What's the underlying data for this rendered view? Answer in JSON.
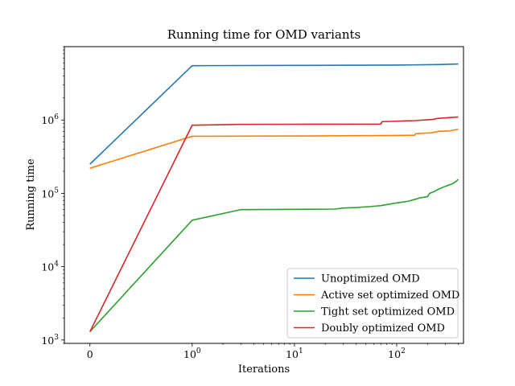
{
  "chart_data": {
    "type": "line",
    "title": "Running time for OMD variants",
    "xlabel": "Iterations",
    "ylabel": "Running time",
    "x_scale": "symlog",
    "y_scale": "log",
    "xlim": [
      -0.25,
      450
    ],
    "ylim": [
      900,
      10000000
    ],
    "x_ticks": [
      {
        "value": 0,
        "label": "0"
      },
      {
        "value": 1,
        "label": "10",
        "exp": "0"
      },
      {
        "value": 10,
        "label": "10",
        "exp": "1"
      },
      {
        "value": 100,
        "label": "10",
        "exp": "2"
      }
    ],
    "y_ticks": [
      {
        "value": 1000,
        "label": "10",
        "exp": "3"
      },
      {
        "value": 10000,
        "label": "10",
        "exp": "4"
      },
      {
        "value": 100000,
        "label": "10",
        "exp": "5"
      },
      {
        "value": 1000000,
        "label": "10",
        "exp": "6"
      }
    ],
    "grid": false,
    "legend_position": "bottom-right",
    "series": [
      {
        "name": "Unoptimized OMD",
        "color": "#1f77b4",
        "points": [
          [
            0,
            250000
          ],
          [
            1,
            5500000
          ],
          [
            10,
            5550000
          ],
          [
            100,
            5600000
          ],
          [
            250,
            5700000
          ],
          [
            400,
            5800000
          ]
        ]
      },
      {
        "name": "Active set optimized OMD",
        "color": "#ff7f0e",
        "points": [
          [
            0,
            220000
          ],
          [
            1,
            600000
          ],
          [
            10,
            605000
          ],
          [
            30,
            610000
          ],
          [
            100,
            615000
          ],
          [
            150,
            620000
          ],
          [
            152,
            650000
          ],
          [
            220,
            670000
          ],
          [
            260,
            700000
          ],
          [
            330,
            710000
          ],
          [
            400,
            750000
          ]
        ]
      },
      {
        "name": "Tight set optimized OMD",
        "color": "#2ca02c",
        "points": [
          [
            0,
            1300
          ],
          [
            1,
            43000
          ],
          [
            3,
            60000
          ],
          [
            10,
            60500
          ],
          [
            25,
            61000
          ],
          [
            30,
            63000
          ],
          [
            40,
            64000
          ],
          [
            55,
            66000
          ],
          [
            70,
            68000
          ],
          [
            100,
            74000
          ],
          [
            130,
            78000
          ],
          [
            170,
            87000
          ],
          [
            200,
            90000
          ],
          [
            210,
            100000
          ],
          [
            230,
            105000
          ],
          [
            260,
            115000
          ],
          [
            300,
            125000
          ],
          [
            350,
            135000
          ],
          [
            380,
            145000
          ],
          [
            400,
            155000
          ]
        ]
      },
      {
        "name": "Doubly optimized OMD",
        "color": "#d62728",
        "points": [
          [
            0,
            1300
          ],
          [
            1,
            850000
          ],
          [
            3,
            870000
          ],
          [
            10,
            875000
          ],
          [
            70,
            880000
          ],
          [
            72,
            950000
          ],
          [
            150,
            980000
          ],
          [
            230,
            1020000
          ],
          [
            250,
            1050000
          ],
          [
            400,
            1100000
          ]
        ]
      }
    ]
  }
}
